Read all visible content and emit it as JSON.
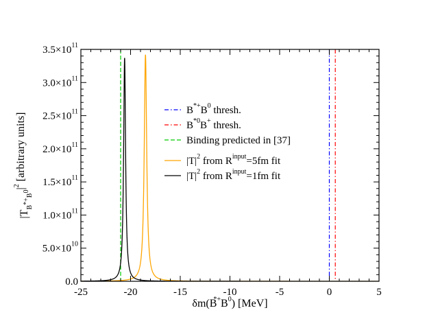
{
  "chart_data": {
    "type": "line",
    "xlabel": {
      "prefix": "δm(B",
      "star": "*",
      "sup": "+",
      "mid": "B",
      "sup2": "0",
      "suffix": ") [MeV]"
    },
    "ylabel": "|T_{B^{*+}B^0}|^2 [arbitrary units]",
    "ylabel_parts": {
      "pre": "|T",
      "sub": "B",
      "subsup": "*+",
      "sub2": "B",
      "sub2sup": "0",
      "mid": "|",
      "sq": "2",
      "units": " [arbitrary units]"
    },
    "xlim": [
      -25,
      5
    ],
    "ylim": [
      0,
      350000000000.0
    ],
    "xticks": [
      {
        "value": -25,
        "label": "-25"
      },
      {
        "value": -20,
        "label": "-20"
      },
      {
        "value": -15,
        "label": "-15"
      },
      {
        "value": -10,
        "label": "-10"
      },
      {
        "value": -5,
        "label": "-5"
      },
      {
        "value": 0,
        "label": "0"
      },
      {
        "value": 5,
        "label": "5"
      }
    ],
    "yticks": [
      {
        "value": 0,
        "mant": "0.0",
        "exp": ""
      },
      {
        "value": 50000000000.0,
        "mant": "5.0×10",
        "exp": "10"
      },
      {
        "value": 100000000000.0,
        "mant": "1.0×10",
        "exp": "11"
      },
      {
        "value": 150000000000.0,
        "mant": "1.5×10",
        "exp": "11"
      },
      {
        "value": 200000000000.0,
        "mant": "2.0×10",
        "exp": "11"
      },
      {
        "value": 250000000000.0,
        "mant": "2.5×10",
        "exp": "11"
      },
      {
        "value": 300000000000.0,
        "mant": "3.0×10",
        "exp": "11"
      },
      {
        "value": 350000000000.0,
        "mant": "3.5×10",
        "exp": "11"
      }
    ],
    "vlines": [
      {
        "name": "B*+B0 thresh.",
        "x": 0.0,
        "color": "#0000ff",
        "style": "dashdot"
      },
      {
        "name": "B*0B+ thresh.",
        "x": 0.6,
        "color": "#ff0000",
        "style": "dashdot"
      },
      {
        "name": "Binding predicted in [37]",
        "x": -21.0,
        "color": "#00cc00",
        "style": "dashed"
      }
    ],
    "series": [
      {
        "name": "|T|^2 from R^input=5fm fit",
        "color": "#ffa500",
        "peak_x": -18.5,
        "peak_y": 342000000000.0,
        "width": 0.15
      },
      {
        "name": "|T|^2 from R^input=1fm fit",
        "color": "#000000",
        "peak_x": -20.6,
        "peak_y": 337000000000.0,
        "width": 0.12
      }
    ],
    "legend": {
      "placement": "center-right",
      "entries": [
        {
          "key": "blue",
          "pre": "B",
          "s1": "*+",
          "mid": "B",
          "s2": "0",
          "post": " thresh."
        },
        {
          "key": "red",
          "pre": "B",
          "s1": "*0",
          "mid": "B",
          "s2": "+",
          "post": " thresh."
        },
        {
          "key": "green",
          "pre": "Binding predicted in [37]",
          "s1": "",
          "mid": "",
          "s2": "",
          "post": ""
        },
        {
          "key": "orange",
          "pre": "|T|",
          "s1": "2",
          "mid": " from R",
          "s2": "input",
          "post": "=5fm fit"
        },
        {
          "key": "black",
          "pre": "|T|",
          "s1": "2",
          "mid": " from R",
          "s2": "input",
          "post": "=1fm fit"
        }
      ]
    }
  }
}
